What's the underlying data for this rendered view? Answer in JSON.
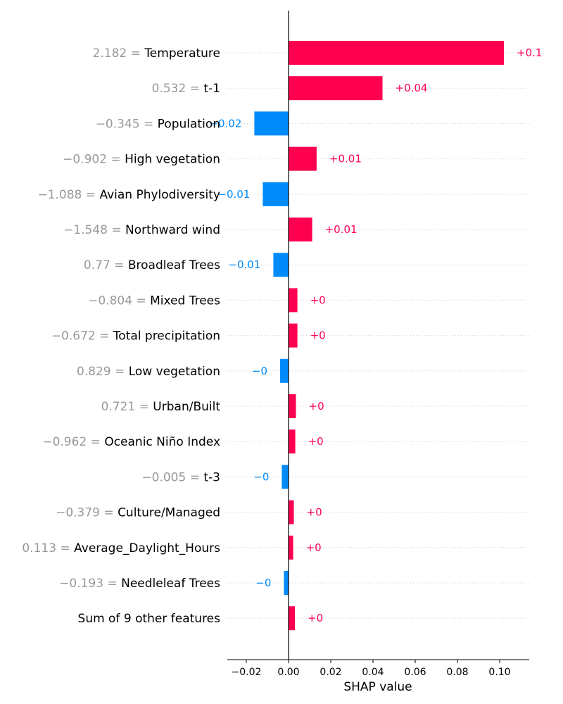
{
  "chart_data": {
    "type": "bar",
    "orientation": "horizontal",
    "xlabel": "SHAP value",
    "xlim": [
      -0.029,
      0.114
    ],
    "xticks": [
      -0.02,
      0.0,
      0.02,
      0.04,
      0.06,
      0.08,
      0.1
    ],
    "xtick_labels": [
      "−0.02",
      "0.00",
      "0.02",
      "0.04",
      "0.06",
      "0.08",
      "0.10"
    ],
    "grid": "dotted row guides",
    "colors": {
      "positive": "#ff0051",
      "negative": "#008bfb",
      "feature_value": "#999999",
      "feature_name": "#000000"
    },
    "features": [
      {
        "value": "2.182",
        "name": "Temperature",
        "shap": 0.102,
        "label": "+0.1"
      },
      {
        "value": "0.532",
        "name": "t-1",
        "shap": 0.0445,
        "label": "+0.04"
      },
      {
        "value": "−0.345",
        "name": "Population",
        "shap": -0.0162,
        "label": "−0.02"
      },
      {
        "value": "−0.902",
        "name": "High vegetation",
        "shap": 0.0133,
        "label": "+0.01"
      },
      {
        "value": "−1.088",
        "name": "Avian Phylodiversity",
        "shap": -0.0122,
        "label": "−0.01"
      },
      {
        "value": "−1.548",
        "name": "Northward wind",
        "shap": 0.0112,
        "label": "+0.01"
      },
      {
        "value": "0.77",
        "name": "Broadleaf Trees",
        "shap": -0.0072,
        "label": "−0.01"
      },
      {
        "value": "−0.804",
        "name": "Mixed Trees",
        "shap": 0.0042,
        "label": "+0"
      },
      {
        "value": "−0.672",
        "name": "Total precipitation",
        "shap": 0.0042,
        "label": "+0"
      },
      {
        "value": "0.829",
        "name": "Low vegetation",
        "shap": -0.004,
        "label": "−0"
      },
      {
        "value": "0.721",
        "name": "Urban/Built",
        "shap": 0.0035,
        "label": "+0"
      },
      {
        "value": "−0.962",
        "name": "Oceanic Niño Index",
        "shap": 0.0032,
        "label": "+0"
      },
      {
        "value": "−0.005",
        "name": "t-3",
        "shap": -0.0032,
        "label": "−0"
      },
      {
        "value": "−0.379",
        "name": "Culture/Managed",
        "shap": 0.0025,
        "label": "+0"
      },
      {
        "value": "0.113",
        "name": "Average_Daylight_Hours",
        "shap": 0.0022,
        "label": "+0"
      },
      {
        "value": "−0.193",
        "name": "Needleleaf Trees",
        "shap": -0.0022,
        "label": "−0"
      },
      {
        "value": "",
        "name": "Sum of 9 other features",
        "shap": 0.003,
        "label": "+0"
      }
    ]
  }
}
